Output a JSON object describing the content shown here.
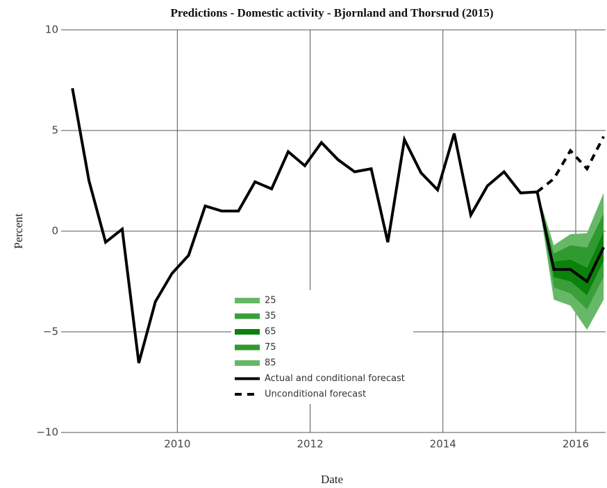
{
  "chart_data": {
    "type": "line",
    "title": "Predictions -  Domestic activity - Bjornland and Thorsrud (2015)",
    "x_label": "Date",
    "y_label": "Percent",
    "x": [
      2008.42,
      2008.67,
      2008.92,
      2009.17,
      2009.42,
      2009.67,
      2009.92,
      2010.17,
      2010.42,
      2010.67,
      2010.92,
      2011.17,
      2011.42,
      2011.67,
      2011.92,
      2012.17,
      2012.42,
      2012.67,
      2012.92,
      2013.17,
      2013.42,
      2013.67,
      2013.92,
      2014.17,
      2014.42,
      2014.67,
      2014.92,
      2015.17,
      2015.42,
      2015.67,
      2015.92,
      2016.17,
      2016.42
    ],
    "series": [
      {
        "name": "Actual and conditional forecast",
        "color": "#000000",
        "dash": false,
        "values": [
          7.1,
          2.5,
          -0.55,
          0.1,
          -6.55,
          -3.5,
          -2.1,
          -1.2,
          1.25,
          1.0,
          1.0,
          2.45,
          2.1,
          3.95,
          3.25,
          4.4,
          3.55,
          2.95,
          3.1,
          -0.55,
          4.55,
          2.9,
          2.05,
          4.85,
          0.8,
          2.25,
          2.95,
          1.9,
          1.95,
          -1.9,
          -1.9,
          -2.5,
          -0.8
        ]
      },
      {
        "name": "Unconditional forecast",
        "color": "#000000",
        "dash": true,
        "values": [
          null,
          null,
          null,
          null,
          null,
          null,
          null,
          null,
          null,
          null,
          null,
          null,
          null,
          null,
          null,
          null,
          null,
          null,
          null,
          null,
          null,
          null,
          null,
          null,
          null,
          null,
          null,
          null,
          1.95,
          2.6,
          4.0,
          3.1,
          4.7
        ]
      }
    ],
    "bands": [
      {
        "name": "25",
        "color": "#66b866",
        "x": [
          2015.42,
          2015.67,
          2015.92,
          2016.17,
          2016.42
        ],
        "lower": [
          1.95,
          -3.4,
          -3.7,
          -4.9,
          -3.4
        ],
        "upper": [
          1.95,
          -2.8,
          -3.1,
          -3.9,
          -2.3
        ]
      },
      {
        "name": "35",
        "color": "#3a9f3a",
        "x": [
          2015.42,
          2015.67,
          2015.92,
          2016.17,
          2016.42
        ],
        "lower": [
          1.95,
          -2.8,
          -3.1,
          -3.9,
          -2.3
        ],
        "upper": [
          1.95,
          -2.3,
          -2.5,
          -3.2,
          -1.5
        ]
      },
      {
        "name": "65",
        "color": "#0b820b",
        "x": [
          2015.42,
          2015.67,
          2015.92,
          2016.17,
          2016.42
        ],
        "lower": [
          1.95,
          -2.3,
          -2.5,
          -3.2,
          -1.5
        ],
        "upper": [
          1.95,
          -1.5,
          -1.4,
          -1.8,
          0
        ]
      },
      {
        "name": "75",
        "color": "#2f9a2f",
        "x": [
          2015.42,
          2015.67,
          2015.92,
          2016.17,
          2016.42
        ],
        "lower": [
          1.95,
          -1.5,
          -1.4,
          -1.8,
          0
        ],
        "upper": [
          1.95,
          -1.1,
          -0.7,
          -0.8,
          0.9
        ]
      },
      {
        "name": "85",
        "color": "#66b866",
        "x": [
          2015.42,
          2015.67,
          2015.92,
          2016.17,
          2016.42
        ],
        "lower": [
          1.95,
          -1.1,
          -0.7,
          -0.8,
          0.9
        ],
        "upper": [
          1.95,
          -0.7,
          -0.15,
          -0.1,
          1.9
        ]
      }
    ],
    "xlim": [
      2008.25,
      2016.45
    ],
    "xticks": [
      2010,
      2012,
      2014,
      2016
    ],
    "ylim": [
      -10,
      10
    ],
    "yticks": [
      {
        "value": -10,
        "label": "−10"
      },
      {
        "value": -5,
        "label": "−5"
      },
      0,
      5,
      10
    ],
    "grid": true
  }
}
